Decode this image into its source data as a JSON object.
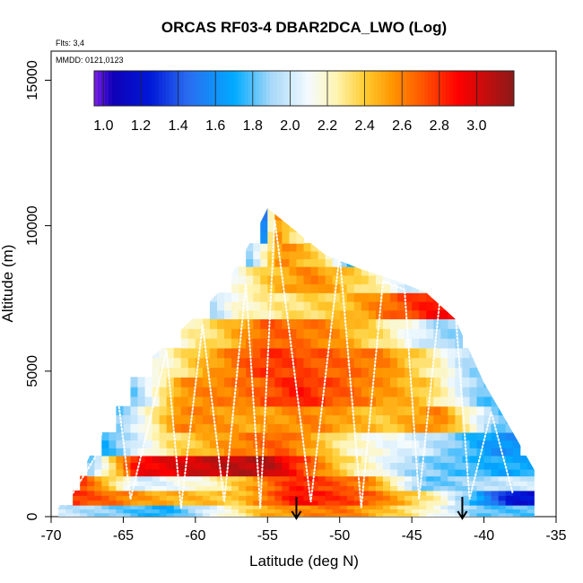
{
  "chart_data": {
    "type": "heatmap",
    "title": "ORCAS RF03-4 DBAR2DCA_LWO (Log)",
    "xlabel": "Latitude (deg N)",
    "ylabel": "Altitude (m)",
    "xlim": [
      -70,
      -35
    ],
    "ylim": [
      0,
      16000
    ],
    "x_ticks": [
      -70,
      -65,
      -60,
      -55,
      -50,
      -45,
      -40,
      -35
    ],
    "x_tick_labels": [
      "-70",
      "-65",
      "-60",
      "-55",
      "-50",
      "-45",
      "-40",
      "-35"
    ],
    "y_ticks": [
      0,
      5000,
      10000,
      15000
    ],
    "y_tick_labels": [
      "0",
      "5000",
      "10000",
      "15000"
    ],
    "notes": [
      "Flts: 3,4",
      "MMDD: 0121,0123"
    ],
    "colorbar": {
      "range": [
        0.95,
        3.2
      ],
      "ticks": [
        1.0,
        1.2,
        1.4,
        1.6,
        1.8,
        2.0,
        2.2,
        2.4,
        2.6,
        2.8,
        3.0
      ],
      "tick_labels": [
        "1.0",
        "1.2",
        "1.4",
        "1.6",
        "1.8",
        "2.0",
        "2.2",
        "2.4",
        "2.6",
        "2.8",
        "3.0"
      ],
      "stops": [
        {
          "v": 0.95,
          "c": "#7b1fe8"
        },
        {
          "v": 1.05,
          "c": "#1000b8"
        },
        {
          "v": 1.25,
          "c": "#0018d8"
        },
        {
          "v": 1.45,
          "c": "#2a6cf0"
        },
        {
          "v": 1.7,
          "c": "#00aaff"
        },
        {
          "v": 1.9,
          "c": "#a8d8f8"
        },
        {
          "v": 2.1,
          "c": "#f4fbff"
        },
        {
          "v": 2.25,
          "c": "#fff4b0"
        },
        {
          "v": 2.4,
          "c": "#ffcc30"
        },
        {
          "v": 2.55,
          "c": "#ff9500"
        },
        {
          "v": 2.7,
          "c": "#ff5a00"
        },
        {
          "v": 2.9,
          "c": "#ff0000"
        },
        {
          "v": 3.2,
          "c": "#8b1a1a"
        }
      ]
    },
    "domain_envelope": {
      "latitude": [
        -69.5,
        -67.5,
        -65,
        -62.5,
        -60,
        -58,
        -56,
        -55,
        -53.5,
        -51,
        -48.5,
        -46,
        -44,
        -42,
        -40,
        -38,
        -36.5
      ],
      "altitude_top": [
        300,
        1900,
        4700,
        5700,
        6900,
        7900,
        9600,
        10600,
        10000,
        9000,
        8500,
        8100,
        7700,
        6800,
        4600,
        2900,
        1600
      ]
    },
    "layers": [
      {
        "alt_range": [
          0,
          400
        ],
        "lat_range": [
          -69.5,
          -36.5
        ],
        "values": [
          [
            -69.5,
            2.0
          ],
          [
            -62,
            1.7
          ],
          [
            -55,
            2.5
          ],
          [
            -50,
            2.65
          ],
          [
            -45,
            2.3
          ],
          [
            -40,
            1.8
          ]
        ]
      },
      {
        "alt_range": [
          400,
          900
        ],
        "lat_range": [
          -68.5,
          -36.5
        ],
        "values": [
          [
            -68.5,
            2.8
          ],
          [
            -63,
            2.5
          ],
          [
            -57,
            2.4
          ],
          [
            -53,
            2.9
          ],
          [
            -48,
            2.7
          ],
          [
            -43,
            2.2
          ],
          [
            -38,
            1.2
          ]
        ]
      },
      {
        "alt_range": [
          900,
          1400
        ],
        "lat_range": [
          -68,
          -36.5
        ],
        "values": [
          [
            -68,
            2.8
          ],
          [
            -64,
            2.0
          ],
          [
            -59,
            2.2
          ],
          [
            -53,
            2.85
          ],
          [
            -48,
            2.6
          ],
          [
            -44,
            1.8
          ],
          [
            -38,
            2.0
          ]
        ]
      },
      {
        "alt_range": [
          1400,
          2100
        ],
        "lat_range": [
          -67.5,
          -36.5
        ],
        "values": [
          [
            -67.5,
            1.8
          ],
          [
            -64,
            2.9
          ],
          [
            -59,
            3.05
          ],
          [
            -55,
            3.1
          ],
          [
            -50,
            2.4
          ],
          [
            -45,
            1.9
          ],
          [
            -39,
            1.7
          ]
        ]
      },
      {
        "alt_range": [
          2100,
          2900
        ],
        "lat_range": [
          -66.5,
          -37.5
        ],
        "values": [
          [
            -66.5,
            1.7
          ],
          [
            -62,
            2.3
          ],
          [
            -57,
            2.6
          ],
          [
            -54,
            2.7
          ],
          [
            -49,
            2.2
          ],
          [
            -44,
            2.0
          ],
          [
            -39,
            1.6
          ]
        ]
      },
      {
        "alt_range": [
          2900,
          3800
        ],
        "lat_range": [
          -65.5,
          -38
        ],
        "values": [
          [
            -65.5,
            1.8
          ],
          [
            -61,
            2.6
          ],
          [
            -56,
            2.5
          ],
          [
            -52,
            2.6
          ],
          [
            -47,
            2.4
          ],
          [
            -43,
            2.6
          ],
          [
            -39,
            1.8
          ]
        ]
      },
      {
        "alt_range": [
          3800,
          4800
        ],
        "lat_range": [
          -64.5,
          -39
        ],
        "values": [
          [
            -64.5,
            1.8
          ],
          [
            -61,
            2.55
          ],
          [
            -56,
            2.65
          ],
          [
            -53,
            2.85
          ],
          [
            -48,
            2.6
          ],
          [
            -44,
            2.4
          ],
          [
            -40,
            1.8
          ]
        ]
      },
      {
        "alt_range": [
          4800,
          5800
        ],
        "lat_range": [
          -63,
          -40
        ],
        "values": [
          [
            -63,
            2.1
          ],
          [
            -59,
            2.5
          ],
          [
            -55,
            2.8
          ],
          [
            -51,
            2.7
          ],
          [
            -47,
            2.6
          ],
          [
            -43,
            2.2
          ],
          [
            -41,
            1.9
          ]
        ]
      },
      {
        "alt_range": [
          5800,
          6800
        ],
        "lat_range": [
          -61,
          -41.5
        ],
        "values": [
          [
            -61,
            2.2
          ],
          [
            -58,
            2.4
          ],
          [
            -55,
            2.7
          ],
          [
            -51,
            2.6
          ],
          [
            -47,
            2.3
          ],
          [
            -43,
            1.9
          ]
        ]
      },
      {
        "alt_range": [
          6800,
          7700
        ],
        "lat_range": [
          -59,
          -42
        ],
        "values": [
          [
            -59,
            1.9
          ],
          [
            -57,
            2.2
          ],
          [
            -54,
            2.3
          ],
          [
            -50,
            2.4
          ],
          [
            -46,
            2.7
          ],
          [
            -43,
            2.9
          ]
        ]
      },
      {
        "alt_range": [
          7700,
          8600
        ],
        "lat_range": [
          -57.5,
          -44
        ],
        "values": [
          [
            -57.5,
            2.1
          ],
          [
            -55,
            2.4
          ],
          [
            -52,
            2.6
          ],
          [
            -48,
            2.3
          ],
          [
            -45,
            2.0
          ]
        ]
      },
      {
        "alt_range": [
          8600,
          9400
        ],
        "lat_range": [
          -56.5,
          -48.5
        ],
        "values": [
          [
            -56.5,
            1.8
          ],
          [
            -54,
            2.6
          ],
          [
            -51,
            2.3
          ],
          [
            -49,
            1.7
          ]
        ]
      },
      {
        "alt_range": [
          9400,
          10600
        ],
        "lat_range": [
          -55.5,
          -52.5
        ],
        "values": [
          [
            -55.5,
            1.2
          ],
          [
            -54.5,
            2.6
          ],
          [
            -53,
            2.3
          ]
        ]
      }
    ],
    "flight_track_markers": [
      -53,
      -41.5
    ]
  }
}
